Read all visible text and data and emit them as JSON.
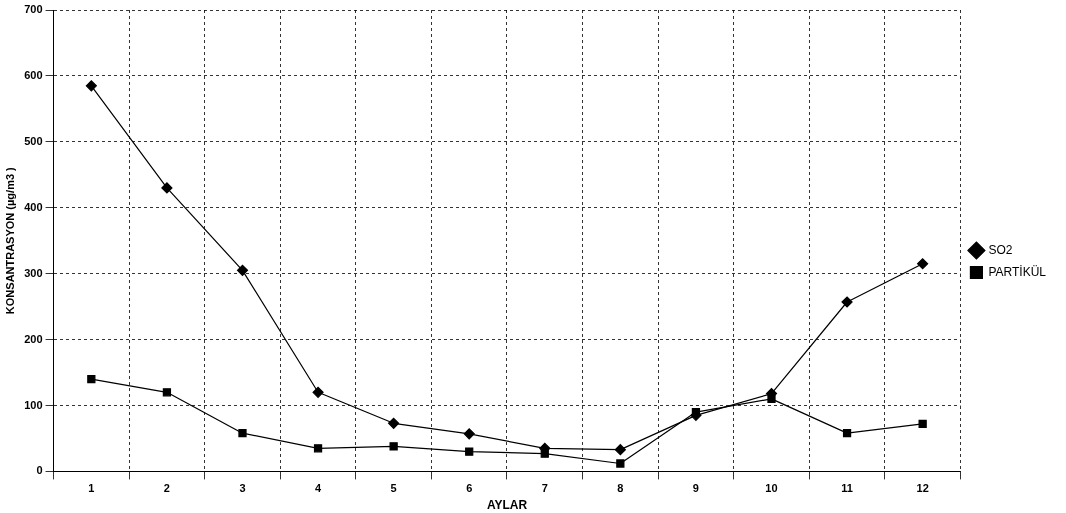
{
  "chart_data": {
    "type": "line",
    "xlabel": "AYLAR",
    "ylabel": "KONSANTRASYON (µg/m3 )",
    "categories": [
      "1",
      "2",
      "3",
      "4",
      "5",
      "6",
      "7",
      "8",
      "9",
      "10",
      "11",
      "12"
    ],
    "series": [
      {
        "name": "SO2",
        "color": "#000000",
        "marker": "diamond",
        "values": [
          585,
          430,
          305,
          120,
          73,
          57,
          35,
          33,
          85,
          118,
          257,
          315
        ]
      },
      {
        "name": "PARTİKÜL",
        "color": "#000000",
        "marker": "square",
        "values": [
          140,
          120,
          58,
          35,
          38,
          30,
          27,
          12,
          90,
          110,
          58,
          72
        ]
      }
    ],
    "ylim": [
      0,
      700
    ],
    "yticks": [
      0,
      100,
      200,
      300,
      400,
      500,
      600,
      700
    ],
    "grid": true,
    "legend": "right",
    "line_style": "solid"
  }
}
